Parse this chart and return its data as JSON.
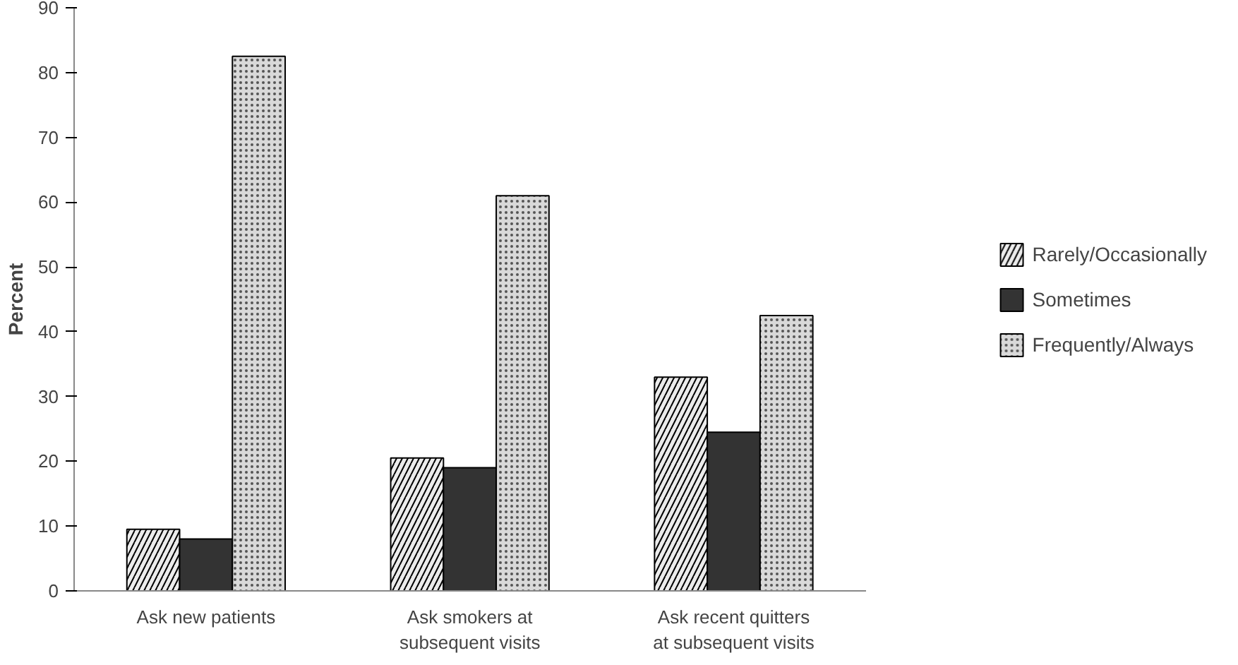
{
  "chart_data": {
    "type": "bar",
    "ylabel": "Percent",
    "categories": [
      "Ask new patients",
      "Ask smokers at subsequent visits",
      "Ask recent quitters at subsequent visits"
    ],
    "series": [
      {
        "name": "Rarely/Occasionally",
        "color": "#ececec",
        "values": [
          9.5,
          20.5,
          33
        ]
      },
      {
        "name": "Sometimes",
        "color": "#333333",
        "values": [
          8,
          19,
          24.5
        ]
      },
      {
        "name": "Frequently/Always",
        "color": "#d9d9d9",
        "values": [
          82.5,
          61,
          42.5
        ]
      }
    ],
    "ylim": [
      0,
      90
    ],
    "yticks": [
      0,
      10,
      20,
      30,
      40,
      50,
      60,
      70,
      80,
      90
    ],
    "grid": false,
    "legend": "right"
  }
}
